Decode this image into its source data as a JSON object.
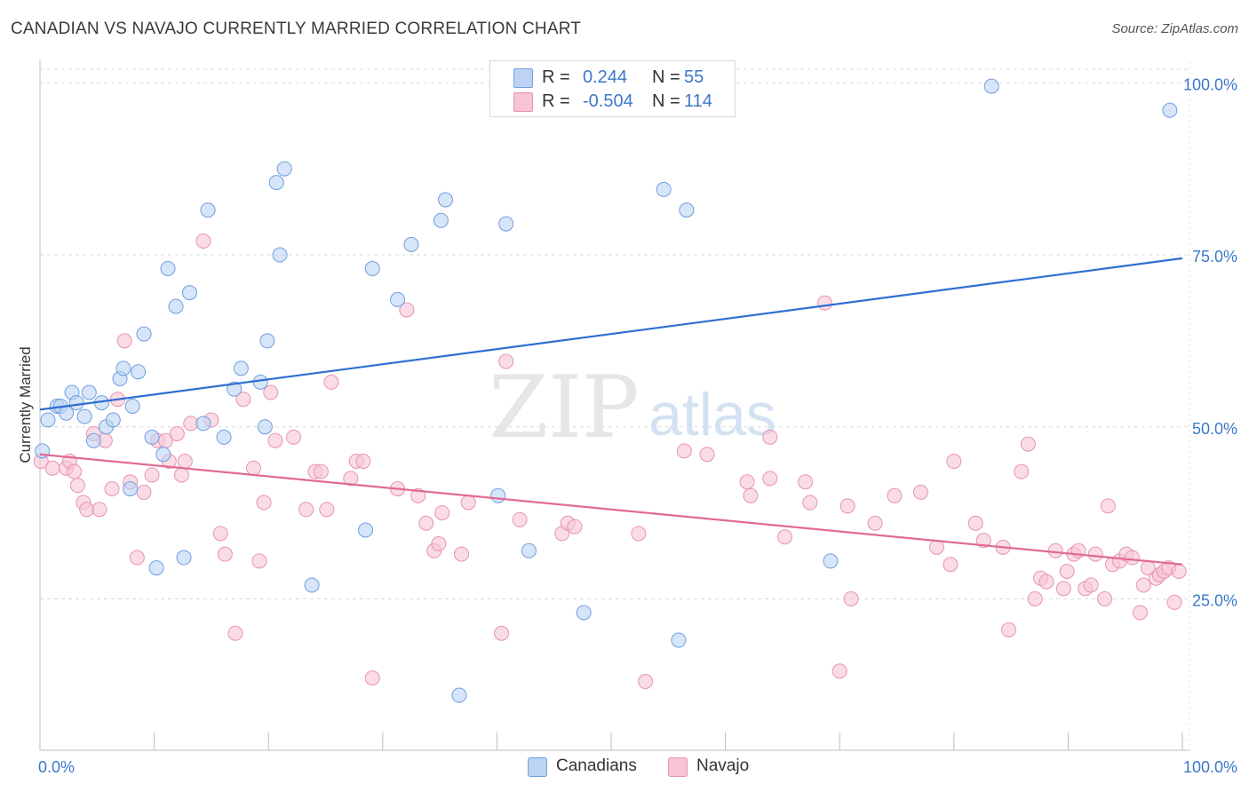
{
  "title": "CANADIAN VS NAVAJO CURRENTLY MARRIED CORRELATION CHART",
  "source": "Source: ZipAtlas.com",
  "watermark": {
    "zip": "ZIP",
    "atlas": "atlas"
  },
  "colors": {
    "canadians_fill": "#bcd3f3",
    "canadians_stroke": "#6f9fe0",
    "canadians_line": "#2f6fd1",
    "navajo_fill": "#f7c4d5",
    "navajo_stroke": "#e893b3",
    "navajo_line": "#e06b95",
    "tick_label": "#3c78c8",
    "grid": "#d9d9d9"
  },
  "stats_legend": {
    "rows": [
      {
        "series": "Canadians",
        "r_label": "R =",
        "r_value": "0.244",
        "n_label": "N =",
        "n_value": "55"
      },
      {
        "series": "Navajo",
        "r_label": "R =",
        "r_value": "-0.504",
        "n_label": "N =",
        "n_value": "114"
      }
    ]
  },
  "chart_data": {
    "type": "scatter",
    "title": "CANADIAN VS NAVAJO CURRENTLY MARRIED CORRELATION CHART",
    "xlabel": "",
    "ylabel": "Currently Married",
    "xlim": [
      0,
      100
    ],
    "ylim": [
      3,
      103
    ],
    "x_tick_labels": [
      "0.0%",
      "100.0%"
    ],
    "y_ticks": [
      25,
      50,
      75,
      100
    ],
    "y_tick_labels": [
      "25.0%",
      "50.0%",
      "75.0%",
      "100.0%"
    ],
    "legend": [
      "Canadians",
      "Navajo"
    ],
    "series": [
      {
        "name": "Canadians",
        "r": 0.244,
        "n": 55,
        "trend": {
          "x": [
            0,
            100
          ],
          "y": [
            52.5,
            74.5
          ]
        },
        "points": [
          [
            0.2,
            46.5
          ],
          [
            0.7,
            51.0
          ],
          [
            1.5,
            53.0
          ],
          [
            1.8,
            53.0
          ],
          [
            2.3,
            52.0
          ],
          [
            2.8,
            55.0
          ],
          [
            3.2,
            53.5
          ],
          [
            3.9,
            51.5
          ],
          [
            4.3,
            55.0
          ],
          [
            4.7,
            48.0
          ],
          [
            5.4,
            53.5
          ],
          [
            5.8,
            50.0
          ],
          [
            6.4,
            51.0
          ],
          [
            7.0,
            57.0
          ],
          [
            7.3,
            58.5
          ],
          [
            7.9,
            41.0
          ],
          [
            8.1,
            53.0
          ],
          [
            8.6,
            58.0
          ],
          [
            9.1,
            63.5
          ],
          [
            9.8,
            48.5
          ],
          [
            10.2,
            29.5
          ],
          [
            10.8,
            46.0
          ],
          [
            11.2,
            73.0
          ],
          [
            11.9,
            67.5
          ],
          [
            12.6,
            31.0
          ],
          [
            13.1,
            69.5
          ],
          [
            14.3,
            50.5
          ],
          [
            14.7,
            81.5
          ],
          [
            16.1,
            48.5
          ],
          [
            17.0,
            55.5
          ],
          [
            17.6,
            58.5
          ],
          [
            19.3,
            56.5
          ],
          [
            19.7,
            50.0
          ],
          [
            19.9,
            62.5
          ],
          [
            20.7,
            85.5
          ],
          [
            21.0,
            75.0
          ],
          [
            21.4,
            87.5
          ],
          [
            23.8,
            27.0
          ],
          [
            28.5,
            35.0
          ],
          [
            29.1,
            73.0
          ],
          [
            31.3,
            68.5
          ],
          [
            32.5,
            76.5
          ],
          [
            35.1,
            80.0
          ],
          [
            35.5,
            83.0
          ],
          [
            36.7,
            11.0
          ],
          [
            40.1,
            40.0
          ],
          [
            40.8,
            79.5
          ],
          [
            42.8,
            32.0
          ],
          [
            47.6,
            23.0
          ],
          [
            54.6,
            84.5
          ],
          [
            55.9,
            19.0
          ],
          [
            56.6,
            81.5
          ],
          [
            69.2,
            30.5
          ],
          [
            83.3,
            99.5
          ],
          [
            98.9,
            96.0
          ]
        ]
      },
      {
        "name": "Navajo",
        "r": -0.504,
        "n": 114,
        "trend": {
          "x": [
            0,
            100
          ],
          "y": [
            46.0,
            30.0
          ]
        },
        "points": [
          [
            0.1,
            45.0
          ],
          [
            1.1,
            44.0
          ],
          [
            2.3,
            44.0
          ],
          [
            2.6,
            45.0
          ],
          [
            3.0,
            43.5
          ],
          [
            3.3,
            41.5
          ],
          [
            3.8,
            39.0
          ],
          [
            4.1,
            38.0
          ],
          [
            4.7,
            49.0
          ],
          [
            5.2,
            38.0
          ],
          [
            5.7,
            48.0
          ],
          [
            6.3,
            41.0
          ],
          [
            6.8,
            54.0
          ],
          [
            7.4,
            62.5
          ],
          [
            7.9,
            42.0
          ],
          [
            8.5,
            31.0
          ],
          [
            9.1,
            40.5
          ],
          [
            9.8,
            43.0
          ],
          [
            10.3,
            48.0
          ],
          [
            11.0,
            48.0
          ],
          [
            11.3,
            45.0
          ],
          [
            12.0,
            49.0
          ],
          [
            12.4,
            43.0
          ],
          [
            12.7,
            45.0
          ],
          [
            13.2,
            50.5
          ],
          [
            14.3,
            77.0
          ],
          [
            15.0,
            51.0
          ],
          [
            15.8,
            34.5
          ],
          [
            16.2,
            31.5
          ],
          [
            17.1,
            20.0
          ],
          [
            17.8,
            54.0
          ],
          [
            18.7,
            44.0
          ],
          [
            19.2,
            30.5
          ],
          [
            19.6,
            39.0
          ],
          [
            20.2,
            55.0
          ],
          [
            20.6,
            48.0
          ],
          [
            22.2,
            48.5
          ],
          [
            23.3,
            38.0
          ],
          [
            24.1,
            43.5
          ],
          [
            24.6,
            43.5
          ],
          [
            25.1,
            38.0
          ],
          [
            25.5,
            56.5
          ],
          [
            27.2,
            42.5
          ],
          [
            27.7,
            45.0
          ],
          [
            28.3,
            45.0
          ],
          [
            29.1,
            13.5
          ],
          [
            31.3,
            41.0
          ],
          [
            32.1,
            67.0
          ],
          [
            33.1,
            40.0
          ],
          [
            33.8,
            36.0
          ],
          [
            34.5,
            32.0
          ],
          [
            34.9,
            33.0
          ],
          [
            35.2,
            37.5
          ],
          [
            36.9,
            31.5
          ],
          [
            37.5,
            39.0
          ],
          [
            40.4,
            20.0
          ],
          [
            40.8,
            59.5
          ],
          [
            42.0,
            36.5
          ],
          [
            45.7,
            34.5
          ],
          [
            46.2,
            36.0
          ],
          [
            46.8,
            35.5
          ],
          [
            52.4,
            34.5
          ],
          [
            53.0,
            13.0
          ],
          [
            56.4,
            46.5
          ],
          [
            58.4,
            46.0
          ],
          [
            61.9,
            42.0
          ],
          [
            62.2,
            40.0
          ],
          [
            63.9,
            42.5
          ],
          [
            63.9,
            48.5
          ],
          [
            65.2,
            34.0
          ],
          [
            67.0,
            42.0
          ],
          [
            67.4,
            39.0
          ],
          [
            68.7,
            68.0
          ],
          [
            70.0,
            14.5
          ],
          [
            70.7,
            38.5
          ],
          [
            71.0,
            25.0
          ],
          [
            73.1,
            36.0
          ],
          [
            74.8,
            40.0
          ],
          [
            77.1,
            40.5
          ],
          [
            78.5,
            32.5
          ],
          [
            79.7,
            30.0
          ],
          [
            80.0,
            45.0
          ],
          [
            81.9,
            36.0
          ],
          [
            82.6,
            33.5
          ],
          [
            84.3,
            32.5
          ],
          [
            84.8,
            20.5
          ],
          [
            85.9,
            43.5
          ],
          [
            86.5,
            47.5
          ],
          [
            87.1,
            25.0
          ],
          [
            87.6,
            28.0
          ],
          [
            88.1,
            27.5
          ],
          [
            88.9,
            32.0
          ],
          [
            89.6,
            26.5
          ],
          [
            89.9,
            29.0
          ],
          [
            90.5,
            31.5
          ],
          [
            90.9,
            32.0
          ],
          [
            91.5,
            26.5
          ],
          [
            92.0,
            27.0
          ],
          [
            92.4,
            31.5
          ],
          [
            93.2,
            25.0
          ],
          [
            93.5,
            38.5
          ],
          [
            93.9,
            30.0
          ],
          [
            94.5,
            30.5
          ],
          [
            95.1,
            31.5
          ],
          [
            95.6,
            31.0
          ],
          [
            96.3,
            23.0
          ],
          [
            96.6,
            27.0
          ],
          [
            97.0,
            29.5
          ],
          [
            97.7,
            28.0
          ],
          [
            98.0,
            28.5
          ],
          [
            98.4,
            29.0
          ],
          [
            98.8,
            29.5
          ],
          [
            99.3,
            24.5
          ],
          [
            99.7,
            29.0
          ]
        ]
      }
    ]
  }
}
